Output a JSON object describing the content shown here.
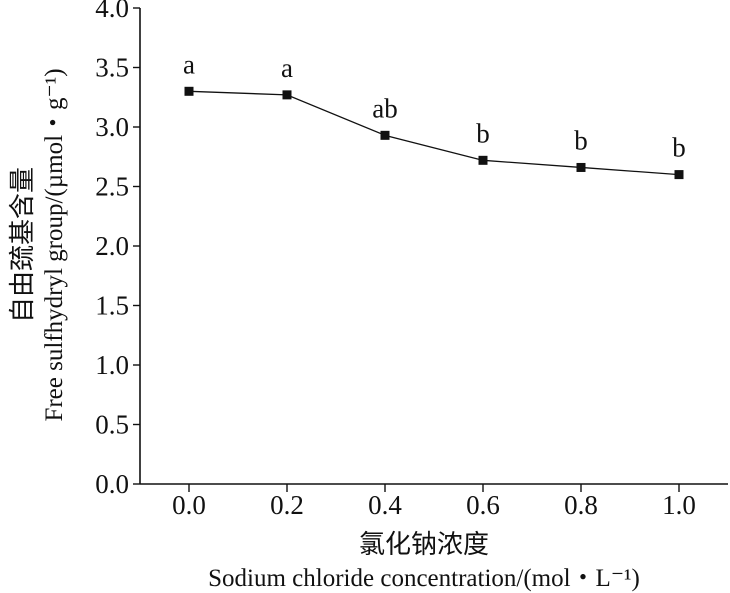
{
  "chart_data": {
    "type": "line",
    "x": [
      0.0,
      0.2,
      0.4,
      0.6,
      0.8,
      1.0
    ],
    "series": [
      {
        "values": [
          3.3,
          3.27,
          2.93,
          2.72,
          2.66,
          2.6
        ]
      }
    ],
    "significance_labels": [
      "a",
      "a",
      "ab",
      "b",
      "b",
      "b"
    ],
    "x_ticks": [
      "0.0",
      "0.2",
      "0.4",
      "0.6",
      "0.8",
      "1.0"
    ],
    "y_ticks": [
      "0.0",
      "0.5",
      "1.0",
      "1.5",
      "2.0",
      "2.5",
      "3.0",
      "3.5",
      "4.0"
    ],
    "xlabel_cn": "氯化钠浓度",
    "xlabel_en": "Sodium chloride concentration/(mol・L⁻¹)",
    "ylabel_cn": "自由巯基含量",
    "ylabel_en": "Free sulfhydryl group/(µmol・g⁻¹)",
    "xlim": [
      -0.1,
      1.1
    ],
    "ylim": [
      0,
      4.0
    ],
    "grid": false,
    "marker": "square",
    "line_color": "#111111",
    "marker_color": "#111111"
  }
}
